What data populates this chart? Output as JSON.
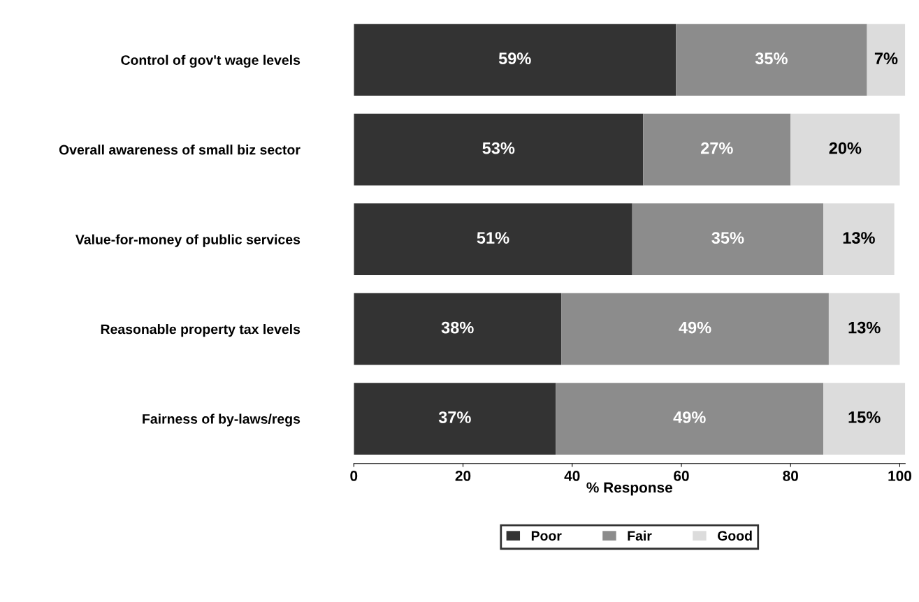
{
  "chart_data": {
    "type": "bar",
    "orientation": "horizontal",
    "stacked": true,
    "xlabel": "% Response",
    "categories": [
      "Control of gov't wage levels",
      "Overall awareness of small biz sector",
      "Value-for-money of public services",
      "Reasonable property tax levels",
      "Fairness of by-laws/regs"
    ],
    "series": [
      {
        "name": "Poor",
        "color": "#333333",
        "values": [
          59,
          53,
          51,
          38,
          37
        ],
        "value_labels": [
          "59%",
          "53%",
          "51%",
          "38%",
          "37%"
        ]
      },
      {
        "name": "Fair",
        "color": "#8c8c8c",
        "values": [
          35,
          27,
          35,
          49,
          49
        ],
        "value_labels": [
          "35%",
          "27%",
          "35%",
          "49%",
          "49%"
        ]
      },
      {
        "name": "Good",
        "color": "#dcdcdc",
        "values": [
          7,
          20,
          13,
          13,
          15
        ],
        "value_labels": [
          "7%",
          "20%",
          "13%",
          "13%",
          "15%"
        ]
      }
    ],
    "xlim": [
      0,
      101
    ],
    "xticks": [
      0,
      20,
      40,
      60,
      80,
      100
    ],
    "grid": false,
    "legend": "bottom"
  }
}
